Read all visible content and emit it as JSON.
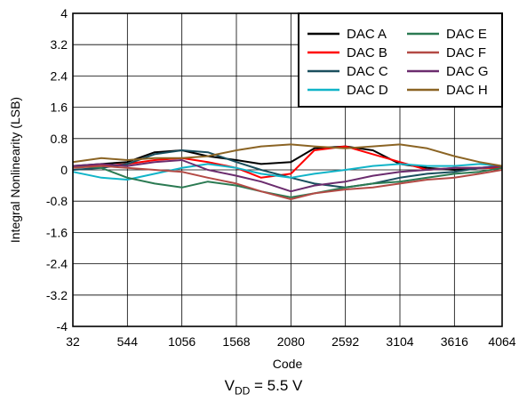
{
  "caption": {
    "prefix": "V",
    "subscript": "DD",
    "suffix": " = 5.5 V"
  },
  "chart_data": {
    "type": "line",
    "xlabel": "Code",
    "ylabel": "Integral Nonlinearity (LSB)",
    "xlim": [
      32,
      4064
    ],
    "ylim": [
      -4,
      4
    ],
    "xticks": [
      32,
      544,
      1056,
      1568,
      2080,
      2592,
      3104,
      3616,
      4064
    ],
    "yticks": [
      "4",
      "3.2",
      "2.4",
      "1.6",
      "0.8",
      "0",
      "-0.8",
      "-1.6",
      "-2.4",
      "-3.2",
      "-4"
    ],
    "grid": true,
    "legend_position": "top-right",
    "series": [
      {
        "name": "DAC A",
        "color": "#000000",
        "x": [
          32,
          300,
          544,
          800,
          1056,
          1300,
          1568,
          1800,
          2080,
          2300,
          2592,
          2850,
          3104,
          3360,
          3616,
          3850,
          4064
        ],
        "y": [
          0.1,
          0.15,
          0.2,
          0.45,
          0.5,
          0.35,
          0.25,
          0.15,
          0.2,
          0.55,
          0.6,
          0.5,
          0.15,
          0.05,
          0.0,
          0.05,
          0.05
        ]
      },
      {
        "name": "DAC B",
        "color": "#ff0000",
        "x": [
          32,
          300,
          544,
          800,
          1056,
          1300,
          1568,
          1800,
          2080,
          2300,
          2592,
          2850,
          3104,
          3360,
          3616,
          3850,
          4064
        ],
        "y": [
          0.1,
          0.1,
          0.15,
          0.25,
          0.3,
          0.2,
          0.05,
          -0.2,
          -0.1,
          0.5,
          0.6,
          0.4,
          0.2,
          0.0,
          0.05,
          0.05,
          0.05
        ]
      },
      {
        "name": "DAC C",
        "color": "#1a4f5e",
        "x": [
          32,
          300,
          544,
          800,
          1056,
          1300,
          1568,
          1800,
          2080,
          2300,
          2592,
          2850,
          3104,
          3360,
          3616,
          3850,
          4064
        ],
        "y": [
          0.0,
          0.05,
          0.15,
          0.4,
          0.5,
          0.45,
          0.2,
          0.0,
          -0.2,
          -0.35,
          -0.45,
          -0.35,
          -0.2,
          -0.1,
          -0.05,
          0.05,
          0.1
        ]
      },
      {
        "name": "DAC D",
        "color": "#11b4c8",
        "x": [
          32,
          300,
          544,
          800,
          1056,
          1300,
          1568,
          1800,
          2080,
          2300,
          2592,
          2850,
          3104,
          3360,
          3616,
          3850,
          4064
        ],
        "y": [
          -0.05,
          -0.2,
          -0.25,
          -0.1,
          0.05,
          0.15,
          0.05,
          -0.1,
          -0.2,
          -0.1,
          0.0,
          0.1,
          0.15,
          0.1,
          0.1,
          0.15,
          0.1
        ]
      },
      {
        "name": "DAC E",
        "color": "#2b7a52",
        "x": [
          32,
          300,
          544,
          800,
          1056,
          1300,
          1568,
          1800,
          2080,
          2300,
          2592,
          2850,
          3104,
          3360,
          3616,
          3850,
          4064
        ],
        "y": [
          0.1,
          0.05,
          -0.2,
          -0.35,
          -0.45,
          -0.3,
          -0.4,
          -0.55,
          -0.7,
          -0.6,
          -0.45,
          -0.35,
          -0.3,
          -0.2,
          -0.1,
          -0.05,
          0.05
        ]
      },
      {
        "name": "DAC F",
        "color": "#b34a45",
        "x": [
          32,
          300,
          544,
          800,
          1056,
          1300,
          1568,
          1800,
          2080,
          2300,
          2592,
          2850,
          3104,
          3360,
          3616,
          3850,
          4064
        ],
        "y": [
          0.05,
          0.1,
          0.05,
          0.0,
          -0.05,
          -0.2,
          -0.35,
          -0.55,
          -0.75,
          -0.6,
          -0.5,
          -0.45,
          -0.35,
          -0.25,
          -0.2,
          -0.1,
          0.0
        ]
      },
      {
        "name": "DAC G",
        "color": "#6b2c6e",
        "x": [
          32,
          300,
          544,
          800,
          1056,
          1300,
          1568,
          1800,
          2080,
          2300,
          2592,
          2850,
          3104,
          3360,
          3616,
          3850,
          4064
        ],
        "y": [
          0.1,
          0.15,
          0.1,
          0.2,
          0.25,
          0.0,
          -0.15,
          -0.3,
          -0.55,
          -0.4,
          -0.3,
          -0.15,
          -0.05,
          0.0,
          0.05,
          0.05,
          0.1
        ]
      },
      {
        "name": "DAC H",
        "color": "#8b6424",
        "x": [
          32,
          300,
          544,
          800,
          1056,
          1300,
          1568,
          1800,
          2080,
          2300,
          2592,
          2850,
          3104,
          3360,
          3616,
          3850,
          4064
        ],
        "y": [
          0.2,
          0.3,
          0.25,
          0.3,
          0.3,
          0.35,
          0.5,
          0.6,
          0.65,
          0.6,
          0.55,
          0.6,
          0.65,
          0.55,
          0.35,
          0.2,
          0.1
        ]
      }
    ]
  }
}
